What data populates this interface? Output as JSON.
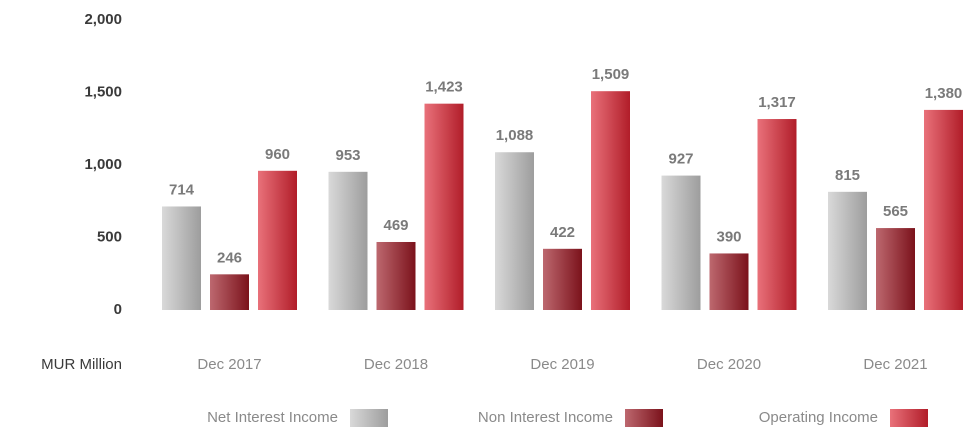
{
  "chart_data": {
    "type": "bar",
    "y_axis_label": "MUR Million",
    "categories": [
      "Dec 2017",
      "Dec 2018",
      "Dec 2019",
      "Dec 2020",
      "Dec 2021"
    ],
    "series": [
      {
        "name": "Net Interest Income",
        "color": "#c4c4c4",
        "values": [
          714,
          953,
          1088,
          927,
          815
        ],
        "value_labels": [
          "714",
          "953",
          "1,088",
          "927",
          "815"
        ]
      },
      {
        "name": "Non Interest Income",
        "color": "#9a1622",
        "values": [
          246,
          469,
          422,
          390,
          565
        ],
        "value_labels": [
          "246",
          "469",
          "422",
          "390",
          "565"
        ]
      },
      {
        "name": "Operating Income",
        "color": "#dd2433",
        "values": [
          960,
          1423,
          1509,
          1317,
          1380
        ],
        "value_labels": [
          "960",
          "1,423",
          "1,509",
          "1,317",
          "1,380"
        ]
      }
    ],
    "ylim": [
      0,
      2000
    ],
    "yticks": [
      0,
      500,
      {
        "value": 1000,
        "label": "1,000"
      },
      {
        "value": 1500,
        "label": "1,500"
      },
      {
        "value": 2000,
        "label": "2,000"
      }
    ],
    "grid": false,
    "legend": "bottom"
  }
}
